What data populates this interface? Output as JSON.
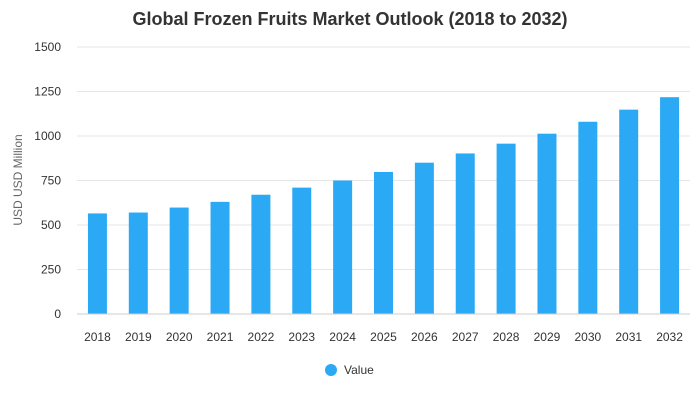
{
  "chart_data": {
    "type": "bar",
    "title": "Global Frozen Fruits Market Outlook (2018 to 2032)",
    "xlabel": "",
    "ylabel": "USD USD Million",
    "ylim": [
      0,
      1500
    ],
    "yticks": [
      0,
      250,
      500,
      750,
      1000,
      1250,
      1500
    ],
    "grid": true,
    "legend_position": "bottom",
    "categories": [
      "2018",
      "2019",
      "2020",
      "2021",
      "2022",
      "2023",
      "2024",
      "2025",
      "2026",
      "2027",
      "2028",
      "2029",
      "2030",
      "2031",
      "2032"
    ],
    "series": [
      {
        "name": "Value",
        "color": "#2ca9f5",
        "values": [
          565,
          570,
          598,
          630,
          670,
          710,
          750,
          798,
          850,
          902,
          957,
          1013,
          1080,
          1148,
          1218
        ]
      }
    ]
  }
}
